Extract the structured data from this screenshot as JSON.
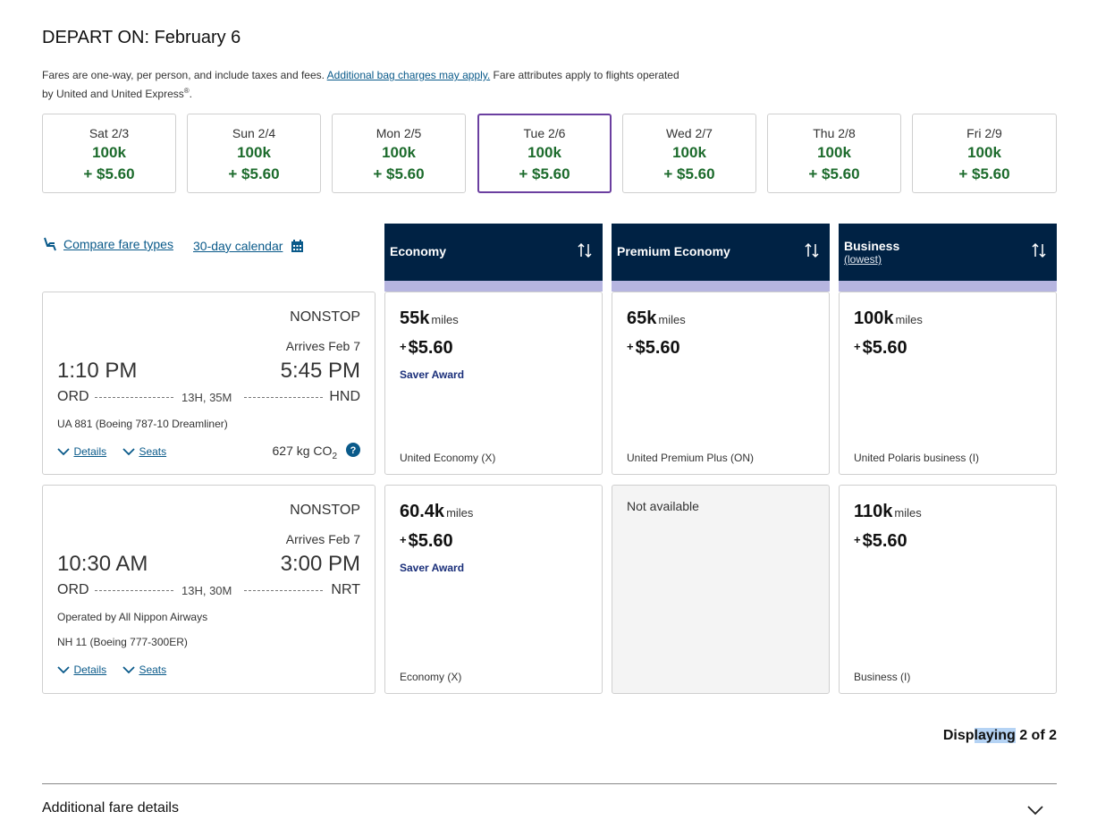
{
  "title": "DEPART ON: February 6",
  "notice": {
    "text1": "Fares are one-way, per person, and include taxes and fees. ",
    "link": "Additional bag charges may apply.",
    "text2": " Fare attributes apply to flights operated by United and United Express",
    "sup": "®",
    "end": "."
  },
  "dates": [
    {
      "day": "Sat 2/3",
      "miles": "100k",
      "cash": "+ $5.60"
    },
    {
      "day": "Sun 2/4",
      "miles": "100k",
      "cash": "+ $5.60"
    },
    {
      "day": "Mon 2/5",
      "miles": "100k",
      "cash": "+ $5.60"
    },
    {
      "day": "Tue 2/6",
      "miles": "100k",
      "cash": "+ $5.60"
    },
    {
      "day": "Wed 2/7",
      "miles": "100k",
      "cash": "+ $5.60"
    },
    {
      "day": "Thu 2/8",
      "miles": "100k",
      "cash": "+ $5.60"
    },
    {
      "day": "Fri 2/9",
      "miles": "100k",
      "cash": "+ $5.60"
    }
  ],
  "selected_date_index": 3,
  "tools": {
    "compare": "Compare fare types",
    "calendar": "30-day calendar"
  },
  "columns": [
    {
      "title": "Economy",
      "sub": ""
    },
    {
      "title": "Premium Economy",
      "sub": ""
    },
    {
      "title": "Business",
      "sub": "(lowest)"
    }
  ],
  "flights": [
    {
      "stops": "NONSTOP",
      "arrives": "Arrives Feb 7",
      "dep_time": "1:10 PM",
      "arr_time": "5:45 PM",
      "origin": "ORD",
      "dest": "HND",
      "duration": "13H, 35M",
      "operated": "",
      "flight": "UA 881 (Boeing 787-10 Dreamliner)",
      "details": "Details",
      "seats": "Seats",
      "co2": "627 kg CO",
      "co2_sub": "2",
      "fares": [
        {
          "miles": "55k",
          "unit": "miles",
          "plus": "+",
          "tax": "$5.60",
          "saver": "Saver Award",
          "cabin": "United Economy (X)"
        },
        {
          "miles": "65k",
          "unit": "miles",
          "plus": "+",
          "tax": "$5.60",
          "saver": "",
          "cabin": "United Premium Plus (ON)"
        },
        {
          "miles": "100k",
          "unit": "miles",
          "plus": "+",
          "tax": "$5.60",
          "saver": "",
          "cabin": "United Polaris business (I)"
        }
      ]
    },
    {
      "stops": "NONSTOP",
      "arrives": "Arrives Feb 7",
      "dep_time": "10:30 AM",
      "arr_time": "3:00 PM",
      "origin": "ORD",
      "dest": "NRT",
      "duration": "13H, 30M",
      "operated": "Operated by All Nippon Airways",
      "flight": "NH 11 (Boeing 777-300ER)",
      "details": "Details",
      "seats": "Seats",
      "fares": [
        {
          "miles": "60.4k",
          "unit": "miles",
          "plus": "+",
          "tax": "$5.60",
          "saver": "Saver Award",
          "cabin": "Economy (X)"
        },
        {
          "unavailable": "Not available"
        },
        {
          "miles": "110k",
          "unit": "miles",
          "plus": "+",
          "tax": "$5.60",
          "saver": "",
          "cabin": "Business (I)"
        }
      ]
    }
  ],
  "display": {
    "pre": "Disp",
    "hl": "laying",
    "post": " 2 of 2"
  },
  "additional": "Additional fare details",
  "colors": {
    "header": "#002244",
    "green": "#1c6b2c",
    "selected": "#6b3fa0",
    "link": "#0a5a8a"
  }
}
